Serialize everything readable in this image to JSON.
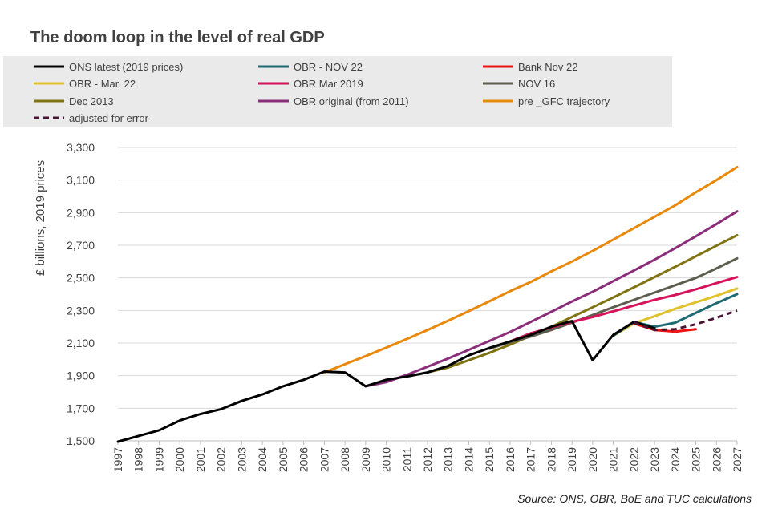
{
  "chart_data": {
    "type": "line",
    "title": "The doom loop in the level of real GDP",
    "ylabel": "£ billions, 2019 prices",
    "xlabel": "",
    "source": "Source: ONS, OBR, BoE and TUC calculations",
    "ylim": [
      1500,
      3300
    ],
    "yticks": [
      1500,
      1700,
      1900,
      2100,
      2300,
      2500,
      2700,
      2900,
      3100,
      3300
    ],
    "ytick_labels": [
      "1,500",
      "1,700",
      "1,900",
      "2,100",
      "2,300",
      "2,500",
      "2,700",
      "2,900",
      "3,100",
      "3,300"
    ],
    "xlim": [
      1997,
      2027
    ],
    "xticks": [
      "1997",
      "1998",
      "1999",
      "2000",
      "2001",
      "2002",
      "2003",
      "2004",
      "2005",
      "2006",
      "2007",
      "2008",
      "2009",
      "2010",
      "2011",
      "2012",
      "2013",
      "2014",
      "2015",
      "2016",
      "2017",
      "2018",
      "2019",
      "2020",
      "2021",
      "2022",
      "2023",
      "2024",
      "2025",
      "2026",
      "2027"
    ],
    "grid": "horizontal",
    "legend_position": "top",
    "series": [
      {
        "name": "pre _GFC trajectory",
        "color": "#e8890c",
        "dash": false,
        "x": [
          2007,
          2008,
          2009,
          2010,
          2011,
          2012,
          2013,
          2014,
          2015,
          2016,
          2017,
          2018,
          2019,
          2020,
          2021,
          2022,
          2023,
          2024,
          2025,
          2026,
          2027
        ],
        "y": [
          1920,
          1970,
          2020,
          2072,
          2125,
          2180,
          2237,
          2296,
          2356,
          2418,
          2475,
          2540,
          2600,
          2665,
          2735,
          2805,
          2875,
          2945,
          3025,
          3100,
          3180
        ]
      },
      {
        "name": "OBR original (from 2011)",
        "color": "#8b2e7a",
        "dash": false,
        "x": [
          2009,
          2010,
          2011,
          2012,
          2013,
          2014,
          2015,
          2016,
          2017,
          2018,
          2019,
          2020,
          2021,
          2022,
          2023,
          2024,
          2025,
          2026,
          2027
        ],
        "y": [
          1835,
          1860,
          1905,
          1955,
          2005,
          2058,
          2113,
          2168,
          2230,
          2292,
          2355,
          2415,
          2480,
          2545,
          2612,
          2682,
          2755,
          2830,
          2908
        ]
      },
      {
        "name": "Dec 2013",
        "color": "#7f7312",
        "dash": false,
        "x": [
          2012,
          2013,
          2014,
          2015,
          2016,
          2017,
          2018,
          2019,
          2020,
          2021,
          2022,
          2023,
          2024,
          2025,
          2026,
          2027
        ],
        "y": [
          1920,
          1950,
          1995,
          2040,
          2090,
          2145,
          2200,
          2260,
          2320,
          2380,
          2442,
          2505,
          2568,
          2632,
          2697,
          2762
        ]
      },
      {
        "name": "NOV 16",
        "color": "#5e5e4e",
        "dash": false,
        "x": [
          2015,
          2016,
          2017,
          2018,
          2019,
          2020,
          2021,
          2022,
          2023,
          2024,
          2025,
          2026,
          2027
        ],
        "y": [
          2065,
          2105,
          2140,
          2180,
          2225,
          2272,
          2320,
          2365,
          2410,
          2455,
          2500,
          2558,
          2620
        ]
      },
      {
        "name": "OBR Mar 2019",
        "color": "#d6135a",
        "dash": false,
        "x": [
          2016,
          2017,
          2018,
          2019,
          2020,
          2021,
          2022,
          2023,
          2024,
          2025,
          2026,
          2027
        ],
        "y": [
          2110,
          2160,
          2195,
          2230,
          2260,
          2295,
          2330,
          2365,
          2395,
          2430,
          2468,
          2505
        ]
      },
      {
        "name": "OBR - Mar. 22",
        "color": "#e0c12a",
        "dash": false,
        "x": [
          2021,
          2022,
          2023,
          2024,
          2025,
          2026,
          2027
        ],
        "y": [
          2145,
          2220,
          2265,
          2310,
          2350,
          2390,
          2435
        ]
      },
      {
        "name": "OBR - NOV 22",
        "color": "#1e6b73",
        "dash": false,
        "x": [
          2021,
          2022,
          2023,
          2024,
          2025,
          2026,
          2027
        ],
        "y": [
          2145,
          2230,
          2200,
          2225,
          2285,
          2345,
          2400
        ]
      },
      {
        "name": "Bank Nov 22",
        "color": "#ee1111",
        "dash": false,
        "x": [
          2022,
          2023,
          2024,
          2025
        ],
        "y": [
          2220,
          2180,
          2170,
          2185
        ]
      },
      {
        "name": "ONS latest (2019 prices)",
        "color": "#000000",
        "dash": false,
        "x": [
          1997,
          1998,
          1999,
          2000,
          2001,
          2002,
          2003,
          2004,
          2005,
          2006,
          2007,
          2008,
          2009,
          2010,
          2011,
          2012,
          2013,
          2014,
          2015,
          2016,
          2017,
          2018,
          2019,
          2020,
          2021,
          2022,
          2023
        ],
        "y": [
          1495,
          1530,
          1565,
          1625,
          1665,
          1695,
          1745,
          1785,
          1835,
          1875,
          1925,
          1920,
          1835,
          1875,
          1895,
          1920,
          1960,
          2025,
          2070,
          2110,
          2150,
          2200,
          2235,
          1995,
          2150,
          2230,
          2190
        ]
      },
      {
        "name": "adjusted for error",
        "color": "#4a1535",
        "dash": true,
        "x": [
          2022,
          2023,
          2024,
          2025,
          2026,
          2027
        ],
        "y": [
          2225,
          2180,
          2185,
          2215,
          2255,
          2300
        ]
      }
    ]
  },
  "legend": {
    "items": [
      {
        "label": "ONS latest (2019 prices)",
        "color": "#000000",
        "dash": false
      },
      {
        "label": "OBR - NOV 22",
        "color": "#1e6b73",
        "dash": false
      },
      {
        "label": "Bank Nov 22",
        "color": "#ee1111",
        "dash": false
      },
      {
        "label": "OBR - Mar. 22",
        "color": "#e0c12a",
        "dash": false
      },
      {
        "label": "OBR Mar 2019",
        "color": "#d6135a",
        "dash": false
      },
      {
        "label": "NOV 16",
        "color": "#5e5e4e",
        "dash": false
      },
      {
        "label": "Dec 2013",
        "color": "#7f7312",
        "dash": false
      },
      {
        "label": "OBR original (from 2011)",
        "color": "#8b2e7a",
        "dash": false
      },
      {
        "label": "pre _GFC trajectory",
        "color": "#e8890c",
        "dash": false
      },
      {
        "label": "adjusted for error",
        "color": "#4a1535",
        "dash": true
      }
    ]
  }
}
